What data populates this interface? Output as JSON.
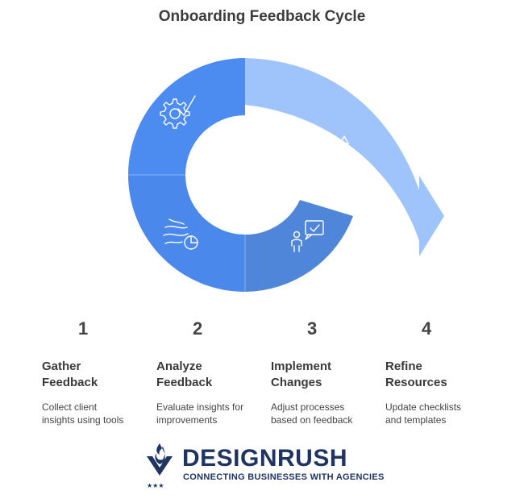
{
  "title": "Onboarding Feedback Cycle",
  "colors": {
    "segment_1": "#4c8cf1",
    "segment_2": "#4a88ec",
    "segment_3": "#4f86d9",
    "segment_4": "#9fc3fb",
    "brand": "#1f3463"
  },
  "steps": [
    {
      "number": "1",
      "heading_line1": "Gather",
      "heading_line2": "Feedback",
      "desc_line1": "Collect client",
      "desc_line2": "insights using tools",
      "icon": "gear-check-icon"
    },
    {
      "number": "2",
      "heading_line1": "Analyze",
      "heading_line2": "Feedback",
      "desc_line1": "Evaluate insights for",
      "desc_line2": "improvements",
      "icon": "wind-chart-icon"
    },
    {
      "number": "3",
      "heading_line1": "Implement",
      "heading_line2": "Changes",
      "desc_line1": "Adjust processes",
      "desc_line2": "based on feedback",
      "icon": "person-chat-icon"
    },
    {
      "number": "4",
      "heading_line1": "Refine",
      "heading_line2": "Resources",
      "desc_line1": "Update checklists",
      "desc_line2": "and templates",
      "icon": "shapes-key-icon"
    }
  ],
  "logo": {
    "brand": "DESIGNRUSH",
    "tagline": "CONNECTING BUSINESSES WITH AGENCIES"
  }
}
